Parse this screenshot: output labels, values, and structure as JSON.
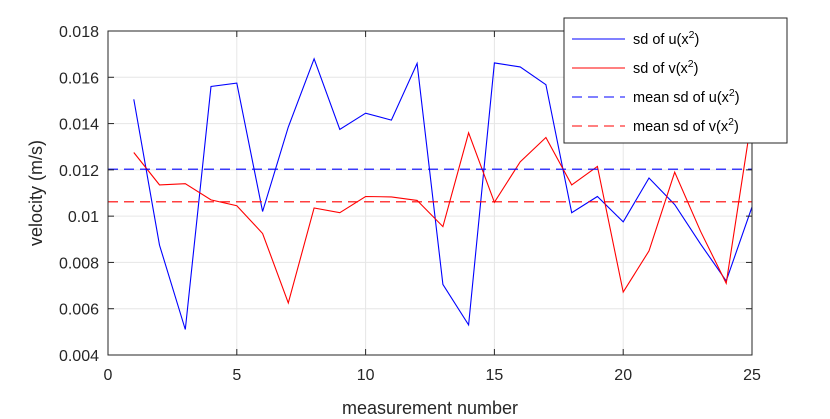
{
  "chart_data": {
    "type": "line",
    "xlabel": "measurement number",
    "ylabel": "velocity (m/s)",
    "xlim": [
      0,
      25
    ],
    "ylim": [
      0.004,
      0.018
    ],
    "xticks": [
      0,
      5,
      10,
      15,
      20,
      25
    ],
    "xtick_labels": [
      "0",
      "5",
      "10",
      "15",
      "20",
      "25"
    ],
    "yticks": [
      0.004,
      0.006,
      0.008,
      0.01,
      0.012,
      0.014,
      0.016,
      0.018
    ],
    "ytick_labels": [
      "0.004",
      "0.006",
      "0.008",
      "0.01",
      "0.012",
      "0.014",
      "0.016",
      "0.018"
    ],
    "grid": true,
    "legend_position": "top-right",
    "x": [
      1,
      2,
      3,
      4,
      5,
      6,
      7,
      8,
      9,
      10,
      11,
      12,
      13,
      14,
      15,
      16,
      17,
      18,
      19,
      20,
      21,
      22,
      23,
      24,
      25
    ],
    "series": [
      {
        "name": "sd of u(x^2)",
        "legend_base": "sd of u(x",
        "legend_sup": "2",
        "legend_tail": ")",
        "color": "#0000ff",
        "style": "solid",
        "values": [
          0.01505,
          0.00875,
          0.0051,
          0.0156,
          0.01575,
          0.0102,
          0.01385,
          0.0168,
          0.01375,
          0.01445,
          0.01415,
          0.0166,
          0.00705,
          0.0053,
          0.01662,
          0.01645,
          0.01568,
          0.01015,
          0.01085,
          0.00975,
          0.01165,
          0.0105,
          0.0088,
          0.0072,
          0.0104
        ]
      },
      {
        "name": "sd of v(x^2)",
        "legend_base": "sd of v(x",
        "legend_sup": "2",
        "legend_tail": ")",
        "color": "#ff0000",
        "style": "solid",
        "values": [
          0.01275,
          0.01135,
          0.0114,
          0.0107,
          0.01045,
          0.00925,
          0.00625,
          0.01035,
          0.01015,
          0.01085,
          0.01083,
          0.01068,
          0.00955,
          0.0136,
          0.0106,
          0.01235,
          0.0134,
          0.01135,
          0.01215,
          0.00672,
          0.0085,
          0.0119,
          0.00935,
          0.0071,
          0.01435
        ]
      },
      {
        "name": "mean sd of u(x^2)",
        "legend_base": "mean sd of u(x",
        "legend_sup": "2",
        "legend_tail": ")",
        "color": "#0000ff",
        "style": "dashed",
        "constant": 0.01203
      },
      {
        "name": "mean sd of v(x^2)",
        "legend_base": "mean sd of v(x",
        "legend_sup": "2",
        "legend_tail": ")",
        "color": "#ff0000",
        "style": "dashed",
        "constant": 0.01062
      }
    ]
  }
}
